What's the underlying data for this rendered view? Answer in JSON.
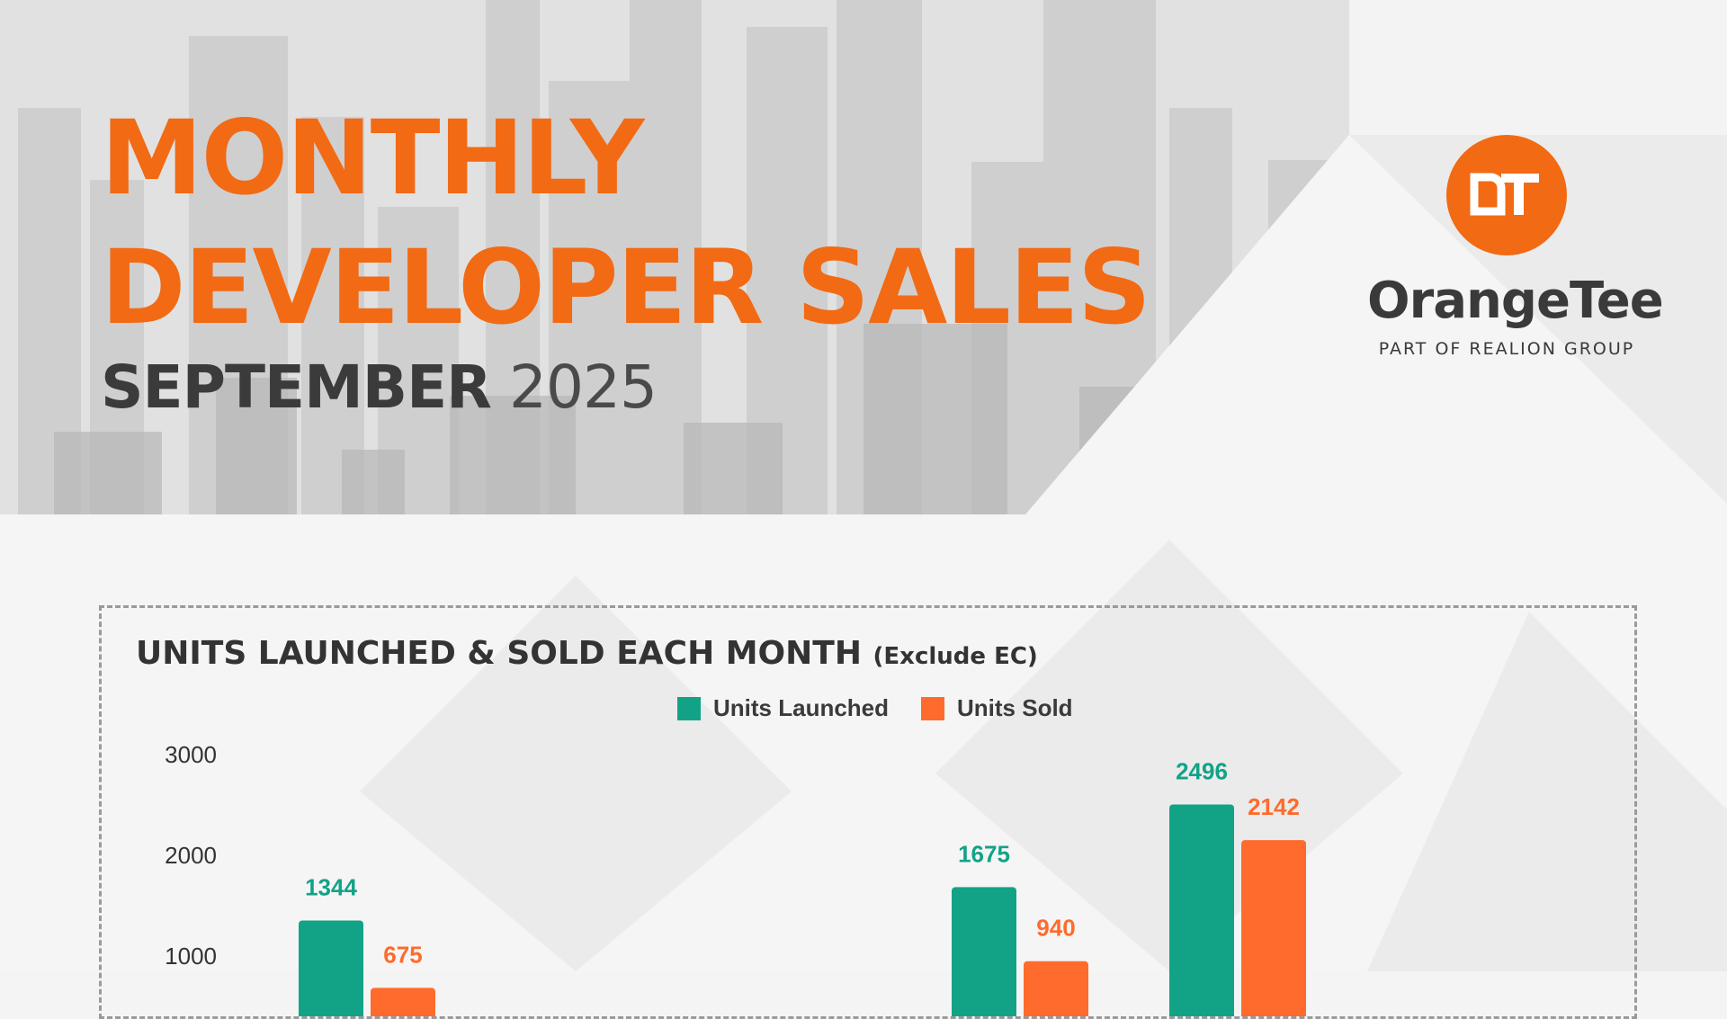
{
  "header": {
    "title_line1": "MONTHLY",
    "title_line2": "DEVELOPER SALES",
    "month": "SEPTEMBER",
    "year": "2025"
  },
  "logo": {
    "monogram": "OT",
    "wordmark": "OrangeTee",
    "tagline": "PART OF REALION GROUP"
  },
  "colors": {
    "brand_orange": "#f26a14",
    "launched": "#12a387",
    "sold": "#ff6b2c"
  },
  "chart_data": {
    "type": "bar",
    "title": "UNITS LAUNCHED & SOLD EACH MONTH",
    "title_note": "(Exclude EC)",
    "legend_position": "top-center",
    "y_ticks": [
      "3000",
      "2000",
      "1000"
    ],
    "ylim": [
      0,
      3000
    ],
    "groups": 5,
    "series": [
      {
        "name": "Units Launched",
        "color": "#12a387",
        "values": [
          1344,
          null,
          null,
          1675,
          2496
        ]
      },
      {
        "name": "Units Sold",
        "color": "#ff6b2c",
        "values": [
          675,
          null,
          null,
          940,
          2142
        ]
      }
    ]
  }
}
